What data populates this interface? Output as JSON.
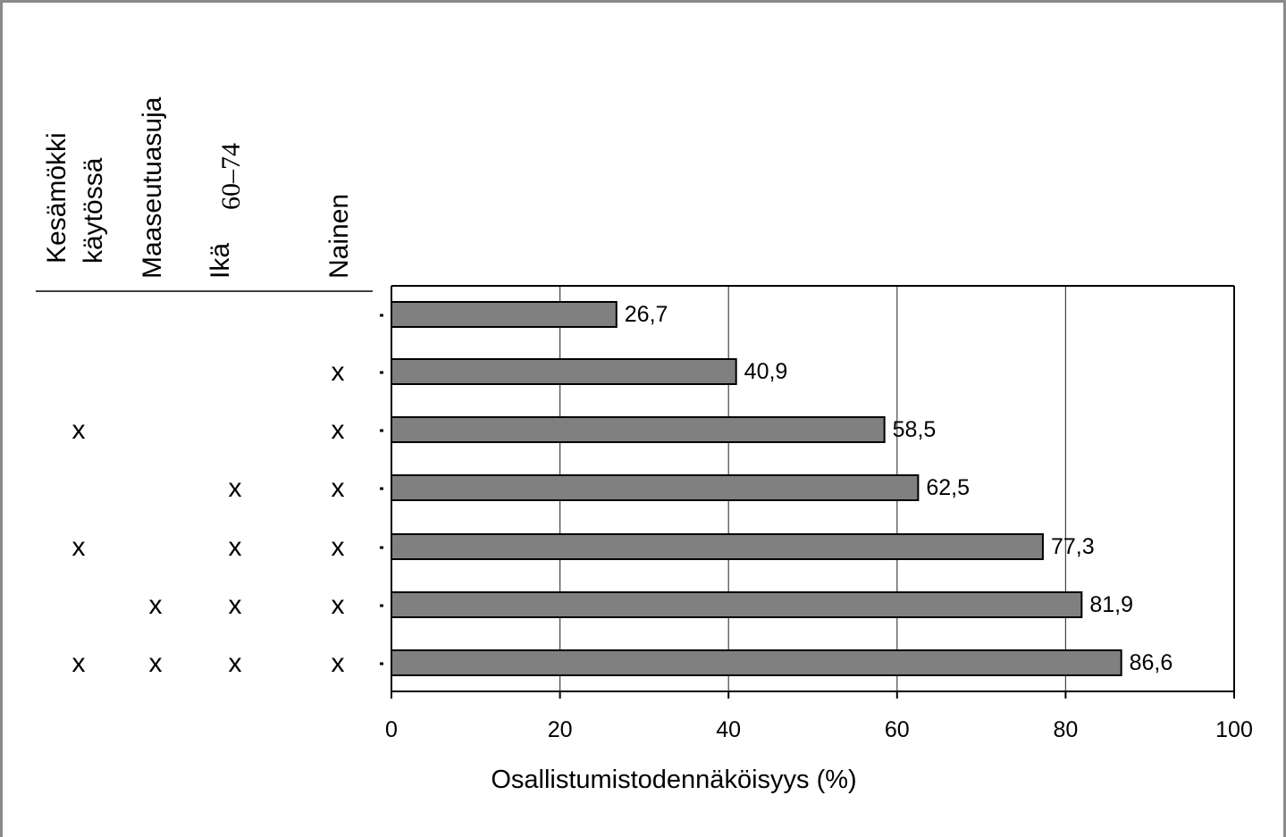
{
  "headers": {
    "col1_line1": "Kesämökki",
    "col1_line2": "käytössä",
    "col2": "Maaseutuasuja",
    "col3_prefix": "Ikä",
    "col3_range": "60–74",
    "col4": "Nainen"
  },
  "mark_symbol": "x",
  "rows": [
    {
      "kesamokki": false,
      "maaseutu": false,
      "ika": false,
      "nainen": false
    },
    {
      "kesamokki": false,
      "maaseutu": false,
      "ika": false,
      "nainen": true
    },
    {
      "kesamokki": true,
      "maaseutu": false,
      "ika": false,
      "nainen": true
    },
    {
      "kesamokki": false,
      "maaseutu": false,
      "ika": true,
      "nainen": true
    },
    {
      "kesamokki": true,
      "maaseutu": false,
      "ika": true,
      "nainen": true
    },
    {
      "kesamokki": false,
      "maaseutu": true,
      "ika": true,
      "nainen": true
    },
    {
      "kesamokki": true,
      "maaseutu": true,
      "ika": true,
      "nainen": true
    }
  ],
  "chart_data": {
    "type": "bar",
    "orientation": "horizontal",
    "values": [
      26.7,
      40.9,
      58.5,
      62.5,
      77.3,
      81.9,
      86.6
    ],
    "value_labels": [
      "26,7",
      "40,9",
      "58,5",
      "62,5",
      "77,3",
      "81,9",
      "86,6"
    ],
    "xlabel": "Osallistumistodennäköisyys (%)",
    "xlim": [
      0,
      100
    ],
    "xticks": [
      0,
      20,
      40,
      60,
      80,
      100
    ],
    "grid": "vertical",
    "bar_color": "#808080"
  }
}
